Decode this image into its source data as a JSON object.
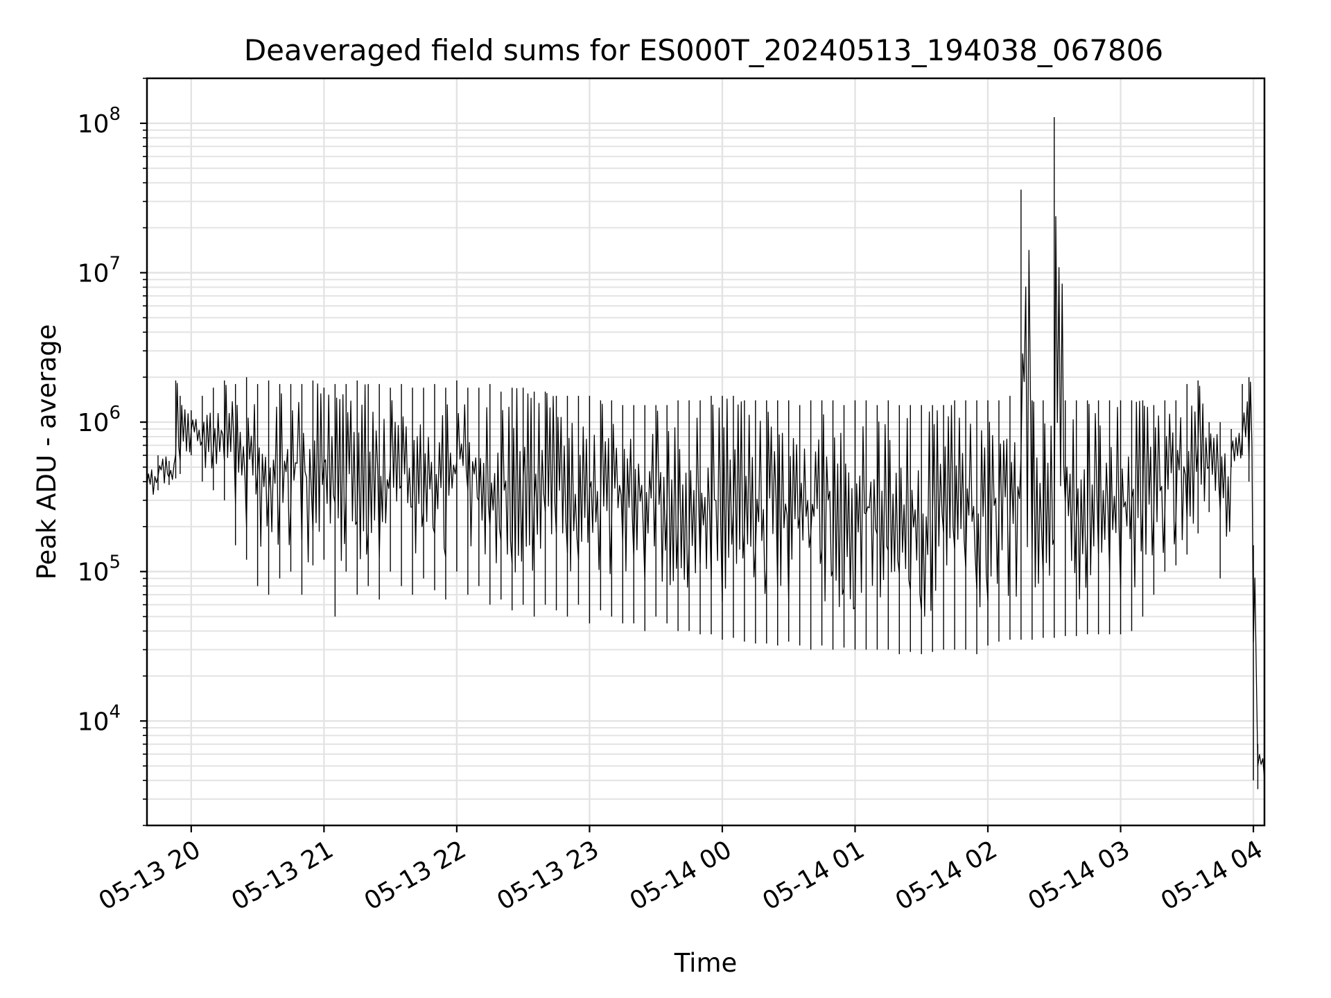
{
  "chart_data": {
    "type": "line",
    "title": "Deaveraged field sums for ES000T_20240513_194038_067806",
    "xlabel": "Time",
    "ylabel": "Peak ADU - average",
    "yscale": "log",
    "ylim": [
      2000,
      200000000
    ],
    "xlim": [
      "2024-05-13 19:40",
      "2024-05-14 04:05"
    ],
    "grid": true,
    "line_color": "#000000",
    "x_ticks": [
      {
        "time": "2024-05-13 20:00",
        "label": "05-13 20"
      },
      {
        "time": "2024-05-13 21:00",
        "label": "05-13 21"
      },
      {
        "time": "2024-05-13 22:00",
        "label": "05-13 22"
      },
      {
        "time": "2024-05-13 23:00",
        "label": "05-13 23"
      },
      {
        "time": "2024-05-14 00:00",
        "label": "05-14 00"
      },
      {
        "time": "2024-05-14 01:00",
        "label": "05-14 01"
      },
      {
        "time": "2024-05-14 02:00",
        "label": "05-14 02"
      },
      {
        "time": "2024-05-14 03:00",
        "label": "05-14 03"
      },
      {
        "time": "2024-05-14 04:00",
        "label": "05-14 04"
      }
    ],
    "y_ticks": [
      {
        "value": 10000,
        "base": "10",
        "exp": "4"
      },
      {
        "value": 100000,
        "base": "10",
        "exp": "5"
      },
      {
        "value": 1000000,
        "base": "10",
        "exp": "6"
      },
      {
        "value": 10000000,
        "base": "10",
        "exp": "7"
      },
      {
        "value": 100000000,
        "base": "10",
        "exp": "8"
      }
    ],
    "series": [
      {
        "x": [
          "2024-05-13 19:40",
          "2024-05-13 19:45",
          "2024-05-13 19:50",
          "2024-05-13 19:53",
          "2024-05-13 19:55",
          "2024-05-13 20:00",
          "2024-05-13 20:05",
          "2024-05-13 20:10",
          "2024-05-13 20:15",
          "2024-05-13 20:20",
          "2024-05-13 20:25",
          "2024-05-13 20:30",
          "2024-05-13 20:35",
          "2024-05-13 20:40",
          "2024-05-13 20:45",
          "2024-05-13 20:50",
          "2024-05-13 20:55",
          "2024-05-13 21:00",
          "2024-05-13 21:05",
          "2024-05-13 21:10",
          "2024-05-13 21:15",
          "2024-05-13 21:20",
          "2024-05-13 21:25",
          "2024-05-13 21:30",
          "2024-05-13 21:35",
          "2024-05-13 21:40",
          "2024-05-13 21:45",
          "2024-05-13 21:50",
          "2024-05-13 21:55",
          "2024-05-13 22:00",
          "2024-05-13 22:05",
          "2024-05-13 22:10",
          "2024-05-13 22:15",
          "2024-05-13 22:20",
          "2024-05-13 22:25",
          "2024-05-13 22:30",
          "2024-05-13 22:35",
          "2024-05-13 22:40",
          "2024-05-13 22:45",
          "2024-05-13 22:50",
          "2024-05-13 22:55",
          "2024-05-13 23:00",
          "2024-05-13 23:05",
          "2024-05-13 23:10",
          "2024-05-13 23:15",
          "2024-05-13 23:20",
          "2024-05-13 23:25",
          "2024-05-13 23:30",
          "2024-05-13 23:35",
          "2024-05-13 23:40",
          "2024-05-13 23:45",
          "2024-05-13 23:50",
          "2024-05-13 23:55",
          "2024-05-14 00:00",
          "2024-05-14 00:05",
          "2024-05-14 00:10",
          "2024-05-14 00:15",
          "2024-05-14 00:20",
          "2024-05-14 00:25",
          "2024-05-14 00:30",
          "2024-05-14 00:35",
          "2024-05-14 00:40",
          "2024-05-14 00:45",
          "2024-05-14 00:50",
          "2024-05-14 00:55",
          "2024-05-14 01:00",
          "2024-05-14 01:05",
          "2024-05-14 01:10",
          "2024-05-14 01:15",
          "2024-05-14 01:20",
          "2024-05-14 01:25",
          "2024-05-14 01:30",
          "2024-05-14 01:35",
          "2024-05-14 01:40",
          "2024-05-14 01:45",
          "2024-05-14 01:50",
          "2024-05-14 01:55",
          "2024-05-14 02:00",
          "2024-05-14 02:05",
          "2024-05-14 02:10",
          "2024-05-14 02:15",
          "2024-05-14 02:20",
          "2024-05-14 02:25",
          "2024-05-14 02:30",
          "2024-05-14 02:35",
          "2024-05-14 02:40",
          "2024-05-14 02:45",
          "2024-05-14 02:50",
          "2024-05-14 02:55",
          "2024-05-14 03:00",
          "2024-05-14 03:05",
          "2024-05-14 03:10",
          "2024-05-14 03:15",
          "2024-05-14 03:20",
          "2024-05-14 03:25",
          "2024-05-14 03:30",
          "2024-05-14 03:35",
          "2024-05-14 03:40",
          "2024-05-14 03:45",
          "2024-05-14 03:50",
          "2024-05-14 03:55",
          "2024-05-14 03:58",
          "2024-05-14 04:00",
          "2024-05-14 04:02",
          "2024-05-14 04:05"
        ],
        "y_low": [
          300000,
          350000,
          380000,
          420000,
          450000,
          600000,
          400000,
          350000,
          300000,
          150000,
          120000,
          80000,
          70000,
          90000,
          100000,
          70000,
          110000,
          120000,
          50000,
          100000,
          70000,
          80000,
          65000,
          100000,
          80000,
          70000,
          90000,
          75000,
          65000,
          100000,
          70000,
          80000,
          60000,
          65000,
          55000,
          60000,
          50000,
          60000,
          55000,
          50000,
          60000,
          45000,
          55000,
          50000,
          45000,
          45000,
          40000,
          50000,
          45000,
          40000,
          40000,
          38000,
          38000,
          35000,
          36000,
          34000,
          33000,
          33000,
          32000,
          34000,
          32000,
          30000,
          32000,
          30000,
          31000,
          30000,
          30000,
          30000,
          30000,
          28000,
          29000,
          28000,
          29000,
          30000,
          30000,
          30000,
          28000,
          32000,
          34000,
          35000,
          35000,
          35000,
          36000,
          36000,
          37000,
          37000,
          38000,
          38000,
          38000,
          38000,
          40000,
          50000,
          70000,
          100000,
          110000,
          130000,
          180000,
          250000,
          90000,
          500000,
          600000,
          400000,
          4000,
          3500,
          3000
        ],
        "y_high": [
          500000,
          600000,
          550000,
          1900000,
          1500000,
          1200000,
          1500000,
          1700000,
          1900000,
          1800000,
          2000000,
          1800000,
          1900000,
          1800000,
          1800000,
          1800000,
          1900000,
          1700000,
          1800000,
          1800000,
          1900000,
          1800000,
          1800000,
          1700000,
          1800000,
          1700000,
          1700000,
          1800000,
          1700000,
          1900000,
          1700000,
          1700000,
          1800000,
          1600000,
          1700000,
          1700000,
          1600000,
          1600000,
          1500000,
          1500000,
          1500000,
          1500000,
          1400000,
          1400000,
          1300000,
          1300000,
          1300000,
          1300000,
          1300000,
          1400000,
          1400000,
          1400000,
          1500000,
          1500000,
          1500000,
          1400000,
          1400000,
          1400000,
          1400000,
          1400000,
          1300000,
          1400000,
          1400000,
          1400000,
          1300000,
          1400000,
          1400000,
          1300000,
          1400000,
          1300000,
          1300000,
          1300000,
          1300000,
          1300000,
          1400000,
          1400000,
          1400000,
          1400000,
          1400000,
          1500000,
          36000000,
          1400000,
          1400000,
          110000000,
          1400000,
          1400000,
          1400000,
          1400000,
          1400000,
          1400000,
          1400000,
          1400000,
          1300000,
          1400000,
          1400000,
          1800000,
          1900000,
          1000000,
          1000000,
          900000,
          1800000,
          2000000,
          150000,
          7000,
          6000
        ]
      }
    ]
  }
}
